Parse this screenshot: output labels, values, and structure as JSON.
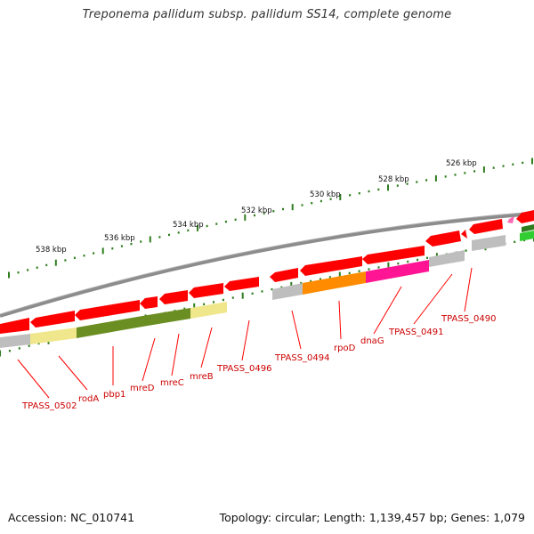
{
  "title": "Treponema pallidum subsp. pallidum SS14, complete genome",
  "footer": {
    "accession": "Accession: NC_010741",
    "topology": "Topology: circular; Length: 1,139,457 bp; Genes: 1,079"
  },
  "colors": {
    "backbone": "#8c8c8c",
    "gene_red": "#ff0000",
    "ruler_green": "#2e7d1e",
    "label_red": "#cc0000",
    "khaki": "#f0e68c",
    "olive": "#6b8e23",
    "gray": "#bebebe",
    "orange": "#ff8c00",
    "magenta": "#ff1493",
    "pink": "#ff69b4",
    "light_green": "#32cd32"
  },
  "kbp_ticks": [
    "538 kbp",
    "536 kbp",
    "534 kbp",
    "532 kbp",
    "530 kbp",
    "528 kbp",
    "526 kbp"
  ],
  "gene_labels": [
    "TPASS_0502",
    "rodA",
    "pbp1",
    "mreD",
    "mreC",
    "mreB",
    "TPASS_0496",
    "TPASS_0494",
    "rpoD",
    "dnaG",
    "TPASS_0491",
    "TPASS_0490"
  ]
}
